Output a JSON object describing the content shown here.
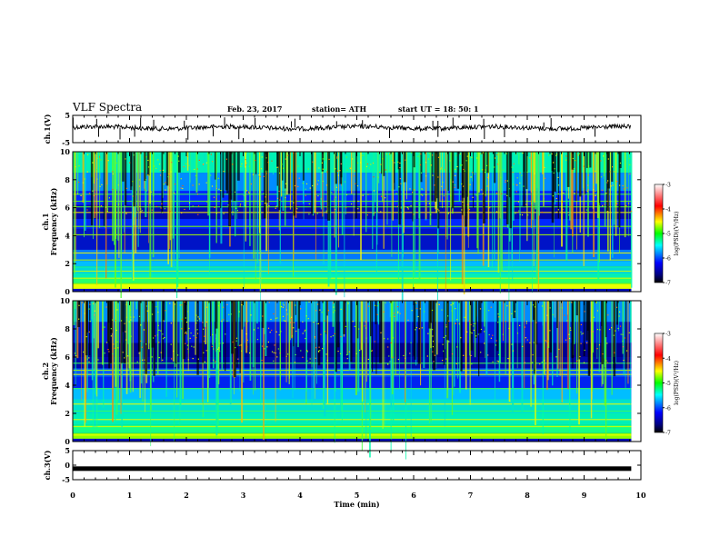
{
  "header": {
    "title": "VLF Spectra",
    "date": "Feb. 23, 2017",
    "station": "station= ATH",
    "start": "start  UT  =  18: 50: 1"
  },
  "chart_data": [
    {
      "type": "line",
      "name": "ch1-waveform",
      "ylabel": "ch.1(V)",
      "ylim": [
        -5,
        5
      ],
      "yticks": [
        "5",
        "-5"
      ],
      "xlim": [
        0,
        10
      ]
    },
    {
      "type": "heatmap",
      "name": "ch1-spectrogram",
      "ylabel": "Frequency  (kHz)",
      "ylabel2": "ch.1",
      "ylim": [
        0,
        10
      ],
      "yticks": [
        "0",
        "2",
        "4",
        "6",
        "8",
        "10"
      ],
      "xlim": [
        0,
        9.8
      ],
      "colorbar": {
        "label": "log(PSD)(V²/Hz)",
        "ticks": [
          "-3",
          "-4",
          "-5",
          "-6",
          "-7"
        ],
        "range": [
          -7,
          -3
        ]
      }
    },
    {
      "type": "heatmap",
      "name": "ch2-spectrogram",
      "ylabel": "Frequency  (kHz)",
      "ylabel2": "ch.2",
      "ylim": [
        0,
        10
      ],
      "yticks": [
        "0",
        "2",
        "4",
        "6",
        "8",
        "10"
      ],
      "xlim": [
        0,
        9.8
      ],
      "colorbar": {
        "label": "log(PSD)(V²/Hz)",
        "ticks": [
          "-3",
          "-4",
          "-5",
          "-6",
          "-7"
        ],
        "range": [
          -7,
          -3
        ]
      }
    },
    {
      "type": "line",
      "name": "ch3-waveform",
      "ylabel": "ch.3(V)",
      "ylim": [
        -5,
        5
      ],
      "yticks": [
        "5",
        "0",
        "-5"
      ],
      "xlim": [
        0,
        10
      ],
      "xlabel": "Time  (min)",
      "xticks": [
        "0",
        "1",
        "2",
        "3",
        "4",
        "5",
        "6",
        "7",
        "8",
        "9",
        "10"
      ]
    }
  ],
  "colors": {
    "background": "#ffffff",
    "axes": "#000000",
    "colormap": [
      "#000080",
      "#0000ff",
      "#00ffff",
      "#00ff00",
      "#ffff00",
      "#ff0000",
      "#ffffff"
    ]
  }
}
